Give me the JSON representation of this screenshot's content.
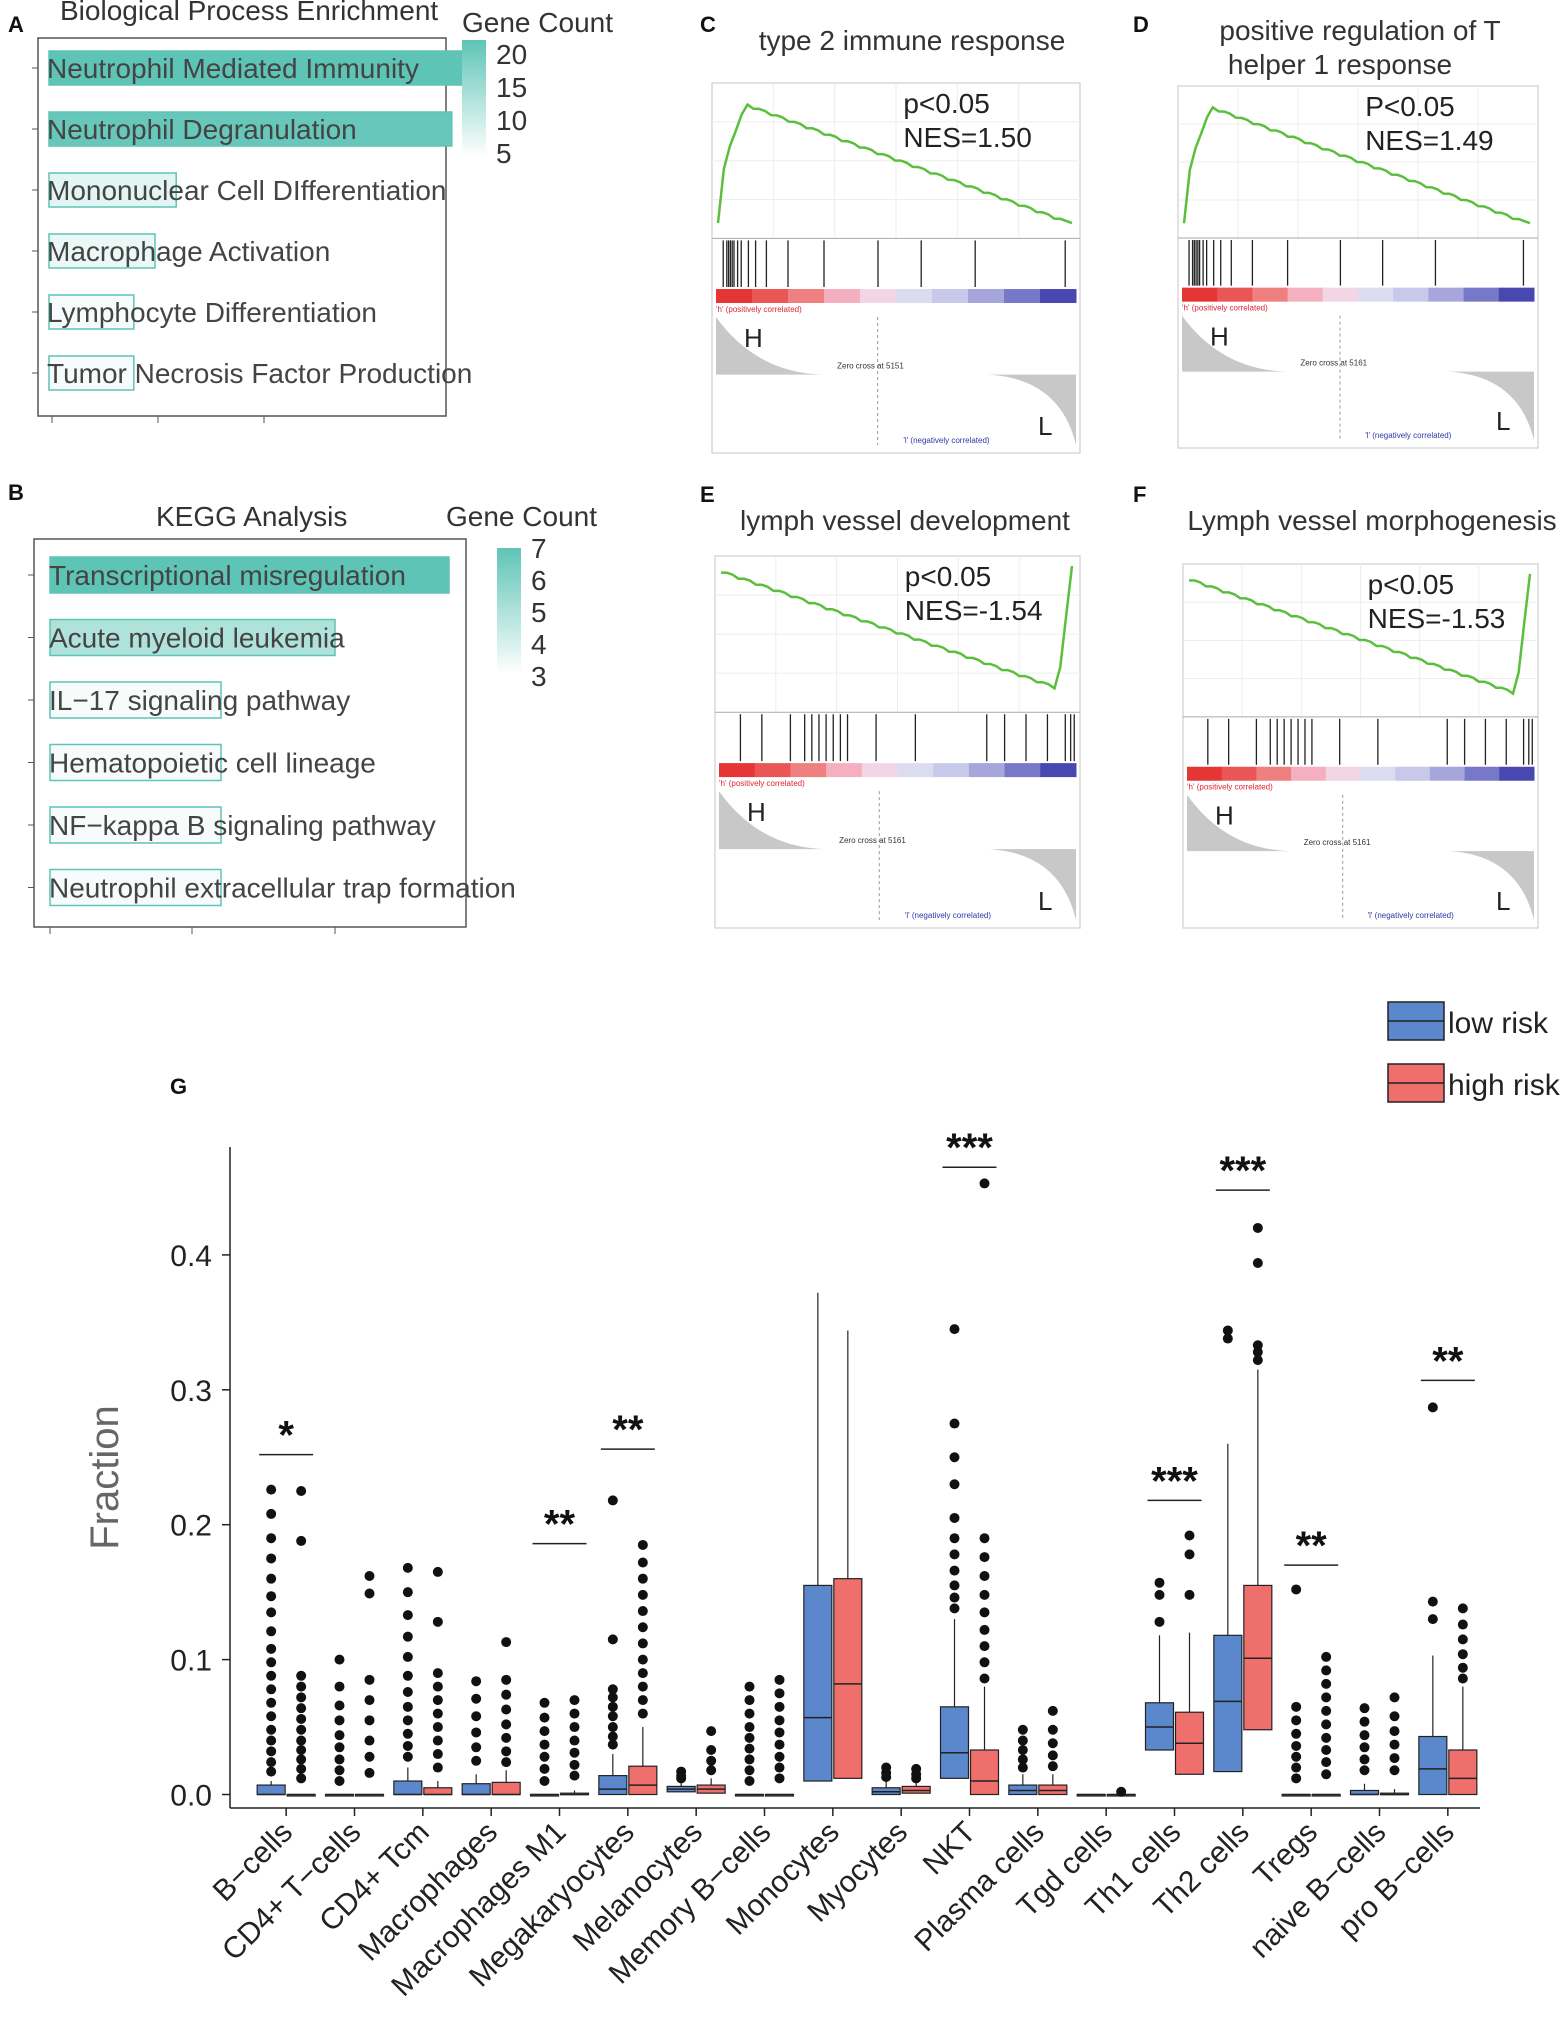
{
  "panels": {
    "A": {
      "label": "A",
      "title": "Biological Process Enrichment",
      "legend_title": "Gene Count",
      "legend_ticks": [
        "20",
        "15",
        "10",
        "5"
      ],
      "scale_max": 20
    },
    "B": {
      "label": "B",
      "title": "KEGG Analysis",
      "legend_title": "Gene Count",
      "legend_ticks": [
        "7",
        "6",
        "5",
        "4",
        "3"
      ],
      "scale_max": 7
    },
    "C": {
      "label": "C",
      "title_lines": [
        "type 2 immune response"
      ],
      "p": "p<0.05",
      "nes": "NES=1.50",
      "H": "H",
      "L": "L",
      "pos_text": "'h' (positively correlated)",
      "neg_text": "'l' (negatively correlated)",
      "zero_text": "Zero cross at 5151"
    },
    "D": {
      "label": "D",
      "title_lines": [
        "positive regulation  of T",
        "helper 1 response"
      ],
      "p": "P<0.05",
      "nes": "NES=1.49",
      "H": "H",
      "L": "L",
      "pos_text": "'h' (positively correlated)",
      "neg_text": "'l' (negatively correlated)",
      "zero_text": "Zero cross at 5161"
    },
    "E": {
      "label": "E",
      "title_lines": [
        "lymph vessel development"
      ],
      "p": "p<0.05",
      "nes": "NES=-1.54",
      "H": "H",
      "L": "L",
      "pos_text": "'h' (positively correlated)",
      "neg_text": "'l' (negatively correlated)",
      "zero_text": "Zero cross at 5161"
    },
    "F": {
      "label": "F",
      "title_lines": [
        "Lymph vessel morphogenesis"
      ],
      "p": "p<0.05",
      "nes": "NES=-1.53",
      "H": "H",
      "L": "L",
      "pos_text": "'h' (positively correlated)",
      "neg_text": "'l' (negatively correlated)",
      "zero_text": "Zero cross at 5161"
    },
    "G": {
      "label": "G"
    }
  },
  "chart_data": [
    {
      "panel": "A",
      "type": "bar",
      "orientation": "horizontal",
      "title": "Biological Process Enrichment",
      "categories": [
        "Neutrophil Mediated Immunity",
        "Neutrophil Degranulation",
        "Mononuclear Cell DIfferentiation",
        "Macrophage Activation",
        "Lymphocyte Differentiation",
        "Tumor Necrosis Factor Production"
      ],
      "values": [
        20,
        19,
        6,
        5,
        4,
        4
      ],
      "color_legend": "Gene Count"
    },
    {
      "panel": "B",
      "type": "bar",
      "orientation": "horizontal",
      "title": "KEGG Analysis",
      "categories": [
        "Transcriptional misregulation",
        "Acute myeloid leukemia",
        "IL−17 signaling pathway",
        "Hematopoietic cell lineage",
        "NF−kappa B signaling pathway",
        "Neutrophil extracellular trap formation"
      ],
      "values": [
        7,
        5,
        3,
        3,
        3,
        3
      ],
      "color_legend": "Gene Count"
    },
    {
      "panel": "G",
      "type": "box",
      "ylabel": "Fraction",
      "ylim": [
        -0.01,
        0.48
      ],
      "yticks": [
        "0.0",
        "0.1",
        "0.2",
        "0.3",
        "0.4"
      ],
      "ytick_values": [
        0.0,
        0.1,
        0.2,
        0.3,
        0.4
      ],
      "legend": [
        {
          "name": "low risk",
          "color": "#5b88cc"
        },
        {
          "name": "high risk",
          "color": "#ef6f6c"
        }
      ],
      "categories": [
        "B−cells",
        "CD4+ T−cells",
        "CD4+ Tcm",
        "Macrophages",
        "Macrophages M1",
        "Megakaryocytes",
        "Melanocytes",
        "Memory B−cells",
        "Monocytes",
        "Myocytes",
        "NKT",
        "Plasma cells",
        "Tgd cells",
        "Th1 cells",
        "Th2 cells",
        "Tregs",
        "naive B−cells",
        "pro B−cells"
      ],
      "series": [
        {
          "name": "low risk",
          "boxes": [
            {
              "q1": 0.0,
              "med": 0.0,
              "q3": 0.007,
              "wlo": 0.0,
              "whi": 0.01,
              "out": [
                0.226,
                0.208,
                0.19,
                0.175,
                0.16,
                0.147,
                0.135,
                0.121,
                0.108,
                0.098,
                0.088,
                0.078,
                0.068,
                0.058,
                0.048,
                0.04,
                0.032,
                0.024,
                0.017
              ]
            },
            {
              "q1": 0.0,
              "med": 0.0,
              "q3": 0.0,
              "wlo": 0.0,
              "whi": 0.0,
              "out": [
                0.1,
                0.08,
                0.066,
                0.055,
                0.044,
                0.035,
                0.026,
                0.018,
                0.01
              ]
            },
            {
              "q1": 0.0,
              "med": 0.0,
              "q3": 0.01,
              "wlo": 0.0,
              "whi": 0.02,
              "out": [
                0.168,
                0.15,
                0.133,
                0.117,
                0.102,
                0.088,
                0.076,
                0.065,
                0.055,
                0.045,
                0.036,
                0.028
              ]
            },
            {
              "q1": 0.0,
              "med": 0.0,
              "q3": 0.008,
              "wlo": 0.0,
              "whi": 0.015,
              "out": [
                0.084,
                0.071,
                0.058,
                0.046,
                0.035,
                0.025
              ]
            },
            {
              "q1": 0.0,
              "med": 0.0,
              "q3": 0.0,
              "wlo": 0.0,
              "whi": 0.0,
              "out": [
                0.068,
                0.057,
                0.047,
                0.037,
                0.028,
                0.019,
                0.01
              ]
            },
            {
              "q1": 0.0,
              "med": 0.004,
              "q3": 0.014,
              "wlo": 0.0,
              "whi": 0.03,
              "out": [
                0.218,
                0.115,
                0.078,
                0.072,
                0.065,
                0.058,
                0.05,
                0.043,
                0.037
              ]
            },
            {
              "q1": 0.002,
              "med": 0.004,
              "q3": 0.006,
              "wlo": 0.0,
              "whi": 0.009,
              "out": [
                0.017,
                0.014,
                0.012
              ]
            },
            {
              "q1": 0.0,
              "med": 0.0,
              "q3": 0.0,
              "wlo": 0.0,
              "whi": 0.0,
              "out": [
                0.08,
                0.07,
                0.06,
                0.05,
                0.042,
                0.034,
                0.026,
                0.018,
                0.01
              ]
            },
            {
              "q1": 0.01,
              "med": 0.057,
              "q3": 0.155,
              "wlo": 0.0,
              "whi": 0.372,
              "out": []
            },
            {
              "q1": 0.0,
              "med": 0.002,
              "q3": 0.005,
              "wlo": 0.0,
              "whi": 0.01,
              "out": [
                0.02,
                0.016,
                0.013
              ]
            },
            {
              "q1": 0.012,
              "med": 0.031,
              "q3": 0.065,
              "wlo": 0.0,
              "whi": 0.13,
              "out": [
                0.345,
                0.275,
                0.25,
                0.23,
                0.205,
                0.19,
                0.178,
                0.166,
                0.155,
                0.146,
                0.138
              ]
            },
            {
              "q1": 0.0,
              "med": 0.003,
              "q3": 0.007,
              "wlo": 0.0,
              "whi": 0.015,
              "out": [
                0.048,
                0.04,
                0.033,
                0.026,
                0.02
              ]
            },
            {
              "q1": 0.0,
              "med": 0.0,
              "q3": 0.0,
              "wlo": 0.0,
              "whi": 0.0,
              "out": []
            },
            {
              "q1": 0.033,
              "med": 0.05,
              "q3": 0.068,
              "wlo": 0.0,
              "whi": 0.118,
              "out": [
                0.157,
                0.148,
                0.128
              ]
            },
            {
              "q1": 0.017,
              "med": 0.069,
              "q3": 0.118,
              "wlo": 0.0,
              "whi": 0.26,
              "out": [
                0.344,
                0.338
              ]
            },
            {
              "q1": 0.0,
              "med": 0.0,
              "q3": 0.0,
              "wlo": 0.0,
              "whi": 0.0,
              "out": [
                0.152,
                0.065,
                0.055,
                0.045,
                0.036,
                0.028,
                0.02,
                0.012
              ]
            },
            {
              "q1": 0.0,
              "med": 0.0,
              "q3": 0.003,
              "wlo": 0.0,
              "whi": 0.008,
              "out": [
                0.064,
                0.054,
                0.044,
                0.035,
                0.026,
                0.018
              ]
            },
            {
              "q1": 0.0,
              "med": 0.019,
              "q3": 0.043,
              "wlo": 0.0,
              "whi": 0.103,
              "out": [
                0.287,
                0.143,
                0.13
              ]
            }
          ]
        },
        {
          "name": "high risk",
          "boxes": [
            {
              "q1": 0.0,
              "med": 0.0,
              "q3": 0.0,
              "wlo": 0.0,
              "whi": 0.0,
              "out": [
                0.225,
                0.188,
                0.088,
                0.08,
                0.072,
                0.064,
                0.056,
                0.048,
                0.04,
                0.033,
                0.026,
                0.019,
                0.012
              ]
            },
            {
              "q1": 0.0,
              "med": 0.0,
              "q3": 0.0,
              "wlo": 0.0,
              "whi": 0.0,
              "out": [
                0.162,
                0.149,
                0.085,
                0.07,
                0.055,
                0.04,
                0.028,
                0.016
              ]
            },
            {
              "q1": 0.0,
              "med": 0.0,
              "q3": 0.005,
              "wlo": 0.0,
              "whi": 0.01,
              "out": [
                0.165,
                0.128,
                0.09,
                0.08,
                0.07,
                0.06,
                0.05,
                0.04,
                0.03,
                0.02
              ]
            },
            {
              "q1": 0.0,
              "med": 0.0,
              "q3": 0.009,
              "wlo": 0.0,
              "whi": 0.018,
              "out": [
                0.113,
                0.085,
                0.074,
                0.063,
                0.052,
                0.042,
                0.032,
                0.024
              ]
            },
            {
              "q1": 0.0,
              "med": 0.0,
              "q3": 0.001,
              "wlo": 0.0,
              "whi": 0.003,
              "out": [
                0.07,
                0.06,
                0.05,
                0.04,
                0.031,
                0.022,
                0.014
              ]
            },
            {
              "q1": 0.0,
              "med": 0.007,
              "q3": 0.021,
              "wlo": 0.0,
              "whi": 0.05,
              "out": [
                0.185,
                0.172,
                0.16,
                0.148,
                0.136,
                0.124,
                0.112,
                0.1,
                0.09,
                0.08,
                0.07,
                0.06
              ]
            },
            {
              "q1": 0.001,
              "med": 0.004,
              "q3": 0.007,
              "wlo": 0.0,
              "whi": 0.012,
              "out": [
                0.047,
                0.033,
                0.025,
                0.018
              ]
            },
            {
              "q1": 0.0,
              "med": 0.0,
              "q3": 0.0,
              "wlo": 0.0,
              "whi": 0.0,
              "out": [
                0.085,
                0.075,
                0.065,
                0.055,
                0.046,
                0.037,
                0.028,
                0.02,
                0.012
              ]
            },
            {
              "q1": 0.012,
              "med": 0.082,
              "q3": 0.16,
              "wlo": 0.0,
              "whi": 0.344,
              "out": []
            },
            {
              "q1": 0.001,
              "med": 0.003,
              "q3": 0.006,
              "wlo": 0.0,
              "whi": 0.01,
              "out": [
                0.019,
                0.015,
                0.012
              ]
            },
            {
              "q1": 0.0,
              "med": 0.01,
              "q3": 0.033,
              "wlo": 0.0,
              "whi": 0.08,
              "out": [
                0.453,
                0.19,
                0.176,
                0.162,
                0.148,
                0.135,
                0.122,
                0.11,
                0.098,
                0.086
              ]
            },
            {
              "q1": 0.0,
              "med": 0.003,
              "q3": 0.007,
              "wlo": 0.0,
              "whi": 0.015,
              "out": [
                0.062,
                0.048,
                0.038,
                0.029,
                0.021
              ]
            },
            {
              "q1": 0.0,
              "med": 0.0,
              "q3": 0.0,
              "wlo": 0.0,
              "whi": 0.0,
              "out": [
                0.002
              ]
            },
            {
              "q1": 0.015,
              "med": 0.038,
              "q3": 0.061,
              "wlo": 0.0,
              "whi": 0.12,
              "out": [
                0.192,
                0.178,
                0.148
              ]
            },
            {
              "q1": 0.048,
              "med": 0.101,
              "q3": 0.155,
              "wlo": 0.0,
              "whi": 0.315,
              "out": [
                0.42,
                0.394,
                0.333,
                0.328,
                0.322
              ]
            },
            {
              "q1": 0.0,
              "med": 0.0,
              "q3": 0.0,
              "wlo": 0.0,
              "whi": 0.0,
              "out": [
                0.102,
                0.092,
                0.082,
                0.072,
                0.062,
                0.052,
                0.042,
                0.033,
                0.024,
                0.015
              ]
            },
            {
              "q1": 0.0,
              "med": 0.0,
              "q3": 0.001,
              "wlo": 0.0,
              "whi": 0.004,
              "out": [
                0.072,
                0.058,
                0.047,
                0.037,
                0.027,
                0.018
              ]
            },
            {
              "q1": 0.0,
              "med": 0.012,
              "q3": 0.033,
              "wlo": 0.0,
              "whi": 0.08,
              "out": [
                0.138,
                0.126,
                0.115,
                0.104,
                0.094,
                0.086
              ]
            }
          ]
        }
      ],
      "significance": [
        {
          "label": "*",
          "category_index": 0,
          "y": 0.252
        },
        {
          "label": "**",
          "category_index": 4,
          "y": 0.186
        },
        {
          "label": "**",
          "category_index": 5,
          "y": 0.256
        },
        {
          "label": "***",
          "category_index": 10,
          "y": 0.465
        },
        {
          "label": "***",
          "category_index": 13,
          "y": 0.218
        },
        {
          "label": "***",
          "category_index": 14,
          "y": 0.448
        },
        {
          "label": "**",
          "category_index": 15,
          "y": 0.17
        },
        {
          "label": "**",
          "category_index": 17,
          "y": 0.307
        }
      ]
    }
  ]
}
